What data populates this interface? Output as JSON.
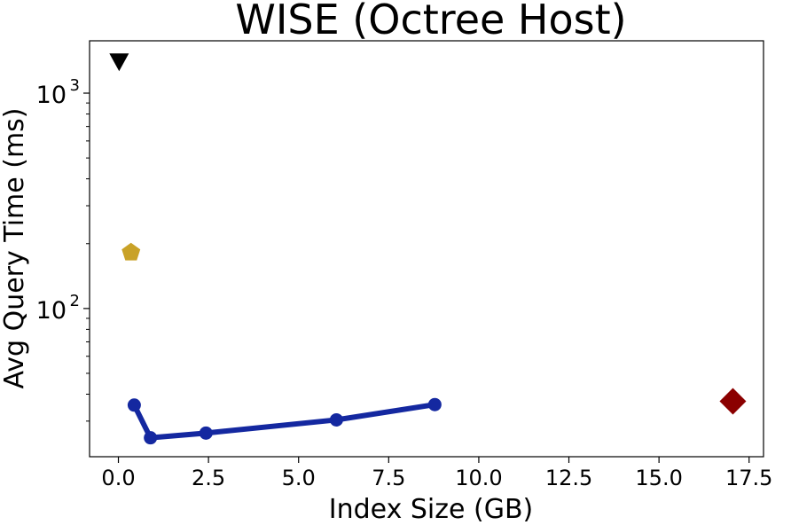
{
  "chart_data": {
    "type": "scatter",
    "title": "WISE (Octree Host)",
    "xlabel": "Index Size (GB)",
    "ylabel": "Avg Query Time (ms)",
    "xlim": [
      -0.8,
      17.9
    ],
    "ylim": [
      20.5,
      1750
    ],
    "yscale": "log",
    "xticks": [
      {
        "value": 0.0,
        "label": "0.0"
      },
      {
        "value": 2.5,
        "label": "2.5"
      },
      {
        "value": 5.0,
        "label": "5.0"
      },
      {
        "value": 7.5,
        "label": "7.5"
      },
      {
        "value": 10.0,
        "label": "10.0"
      },
      {
        "value": 12.5,
        "label": "12.5"
      },
      {
        "value": 15.0,
        "label": "15.0"
      },
      {
        "value": 17.5,
        "label": "17.5"
      }
    ],
    "yticks": [
      {
        "value": 100,
        "base": "10",
        "exp": "2"
      },
      {
        "value": 1000,
        "base": "10",
        "exp": "3"
      }
    ],
    "grid": false,
    "legend": "none",
    "series": [
      {
        "marker": "circle",
        "line": true,
        "color": "#1428a0",
        "points": [
          {
            "x": 0.44,
            "y": 35.6
          },
          {
            "x": 0.89,
            "y": 25.1
          },
          {
            "x": 2.43,
            "y": 26.4
          },
          {
            "x": 6.05,
            "y": 30.4
          },
          {
            "x": 8.78,
            "y": 35.8
          }
        ]
      },
      {
        "marker": "triangle-down",
        "line": false,
        "color": "#000000",
        "points": [
          {
            "x": 0.02,
            "y": 1390
          }
        ]
      },
      {
        "marker": "pentagon",
        "line": false,
        "color": "#c9a227",
        "points": [
          {
            "x": 0.35,
            "y": 182
          }
        ]
      },
      {
        "marker": "diamond",
        "line": false,
        "color": "#8b0000",
        "points": [
          {
            "x": 17.05,
            "y": 37.1
          }
        ]
      }
    ]
  }
}
